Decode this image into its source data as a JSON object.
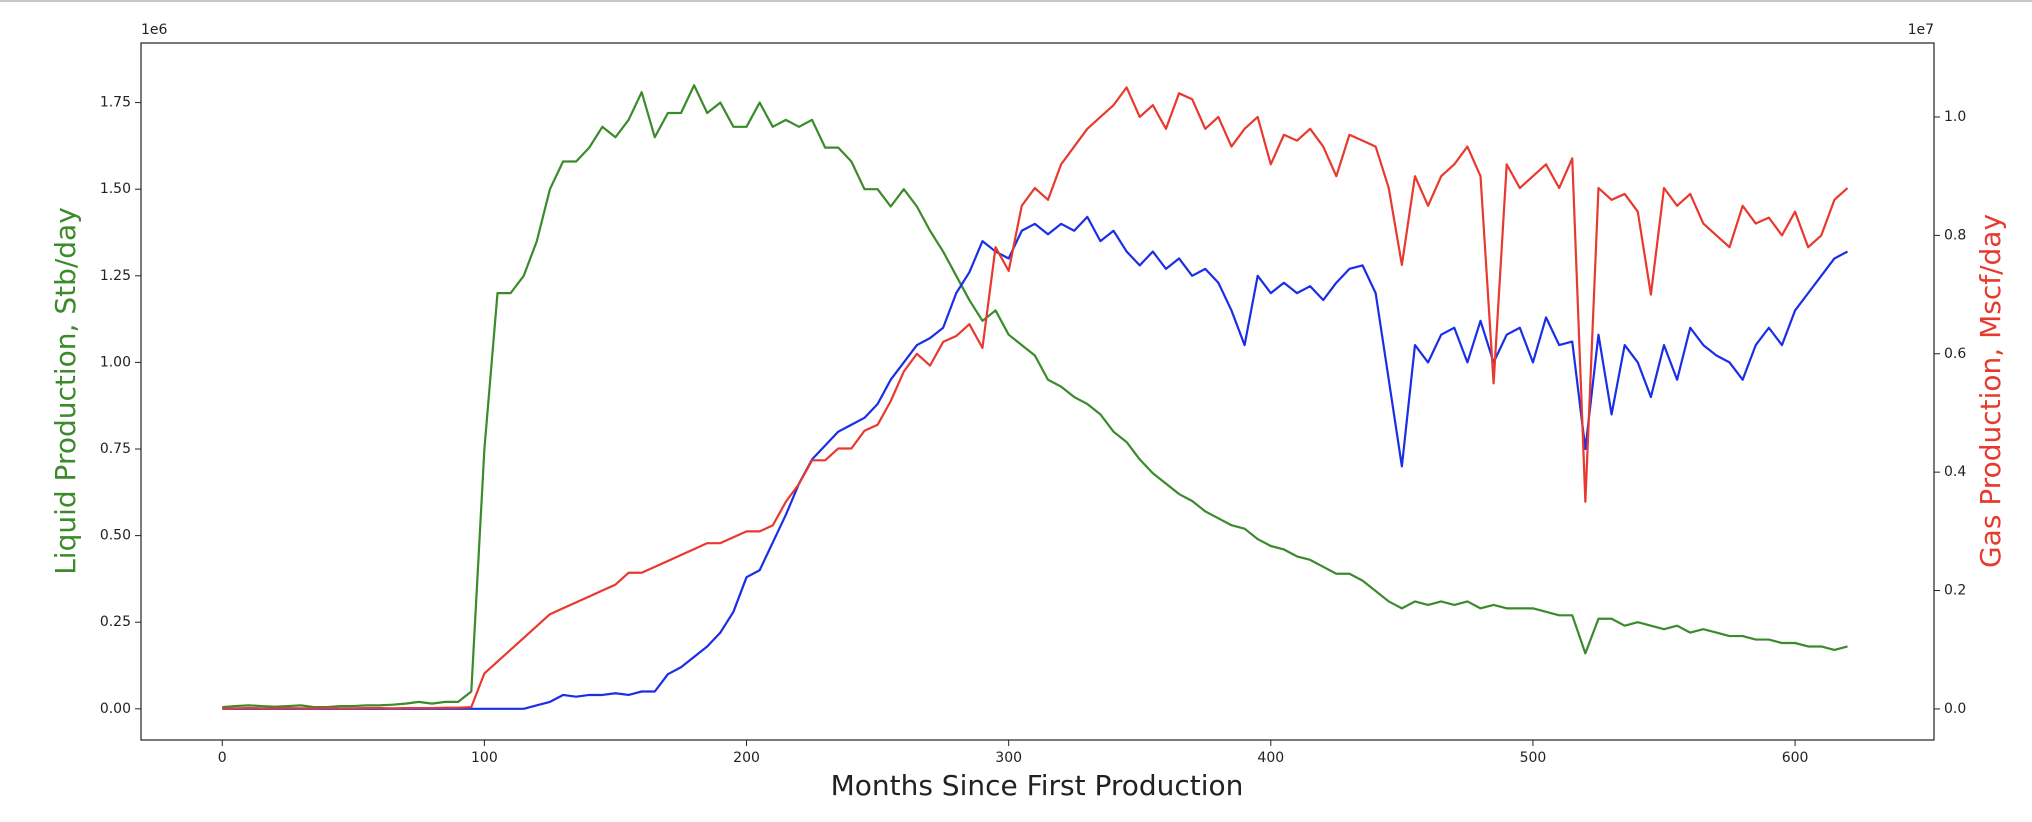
{
  "chart_data": {
    "type": "line",
    "xlabel": "Months Since First Production",
    "ylabel": "Liquid Production, Stb/day",
    "y2label": "Gas Production, Mscf/day",
    "y_offset_text": "1e6",
    "y2_offset_text": "1e7",
    "ylabel_color": "#3b8a2b",
    "y2label_color": "#e8392e",
    "xlim": [
      -31,
      653
    ],
    "ylim": [
      -90000,
      1922000
    ],
    "y2lim": [
      -525000,
      11250000
    ],
    "xticks": [
      0,
      100,
      200,
      300,
      400,
      500,
      600
    ],
    "yticks": [
      {
        "value": 0,
        "label": "0.00"
      },
      {
        "value": 250000,
        "label": "0.25"
      },
      {
        "value": 500000,
        "label": "0.50"
      },
      {
        "value": 750000,
        "label": "0.75"
      },
      {
        "value": 1000000,
        "label": "1.00"
      },
      {
        "value": 1250000,
        "label": "1.25"
      },
      {
        "value": 1500000,
        "label": "1.50"
      },
      {
        "value": 1750000,
        "label": "1.75"
      }
    ],
    "y2ticks": [
      {
        "value": 0,
        "label": "0.0"
      },
      {
        "value": 2000000,
        "label": "0.2"
      },
      {
        "value": 4000000,
        "label": "0.4"
      },
      {
        "value": 6000000,
        "label": "0.6"
      },
      {
        "value": 8000000,
        "label": "0.8"
      },
      {
        "value": 10000000,
        "label": "1.0"
      }
    ],
    "x": [
      0,
      5,
      10,
      15,
      20,
      25,
      30,
      35,
      40,
      45,
      50,
      55,
      60,
      65,
      70,
      75,
      80,
      85,
      90,
      95,
      100,
      105,
      110,
      115,
      120,
      125,
      130,
      135,
      140,
      145,
      150,
      155,
      160,
      165,
      170,
      175,
      180,
      185,
      190,
      195,
      200,
      205,
      210,
      215,
      220,
      225,
      230,
      235,
      240,
      245,
      250,
      255,
      260,
      265,
      270,
      275,
      280,
      285,
      290,
      295,
      300,
      305,
      310,
      315,
      320,
      325,
      330,
      335,
      340,
      345,
      350,
      355,
      360,
      365,
      370,
      375,
      380,
      385,
      390,
      395,
      400,
      405,
      410,
      415,
      420,
      425,
      430,
      435,
      440,
      445,
      450,
      455,
      460,
      465,
      470,
      475,
      480,
      485,
      490,
      495,
      500,
      505,
      510,
      515,
      520,
      525,
      530,
      535,
      540,
      545,
      550,
      555,
      560,
      565,
      570,
      575,
      580,
      585,
      590,
      595,
      600,
      605,
      610,
      615,
      620
    ],
    "series": [
      {
        "color": "#3b8a2b",
        "values": [
          5000,
          8000,
          10000,
          8000,
          6000,
          8000,
          10000,
          5000,
          5000,
          8000,
          8000,
          10000,
          10000,
          12000,
          15000,
          20000,
          15000,
          20000,
          20000,
          50000,
          750000,
          1200000,
          1200000,
          1250000,
          1350000,
          1500000,
          1580000,
          1580000,
          1620000,
          1680000,
          1650000,
          1700000,
          1780000,
          1650000,
          1720000,
          1720000,
          1800000,
          1720000,
          1750000,
          1680000,
          1680000,
          1750000,
          1680000,
          1700000,
          1680000,
          1700000,
          1620000,
          1620000,
          1580000,
          1500000,
          1500000,
          1450000,
          1500000,
          1450000,
          1380000,
          1320000,
          1250000,
          1180000,
          1120000,
          1150000,
          1080000,
          1050000,
          1020000,
          950000,
          930000,
          900000,
          880000,
          850000,
          800000,
          770000,
          720000,
          680000,
          650000,
          620000,
          600000,
          570000,
          550000,
          530000,
          520000,
          490000,
          470000,
          460000,
          440000,
          430000,
          410000,
          390000,
          390000,
          370000,
          340000,
          310000,
          290000,
          310000,
          300000,
          310000,
          300000,
          310000,
          290000,
          300000,
          290000,
          290000,
          290000,
          280000,
          270000,
          270000,
          160000,
          260000,
          260000,
          240000,
          250000,
          240000,
          230000,
          240000,
          220000,
          230000,
          220000,
          210000,
          210000,
          200000,
          200000,
          190000,
          190000,
          180000,
          180000,
          170000,
          180000
        ]
      },
      {
        "color": "#1a2ee8",
        "values": [
          0,
          0,
          0,
          0,
          0,
          0,
          0,
          0,
          0,
          0,
          0,
          0,
          0,
          0,
          0,
          0,
          0,
          0,
          0,
          0,
          0,
          0,
          0,
          0,
          10000,
          20000,
          40000,
          35000,
          40000,
          40000,
          45000,
          40000,
          50000,
          50000,
          100000,
          120000,
          150000,
          180000,
          220000,
          280000,
          380000,
          400000,
          480000,
          560000,
          650000,
          720000,
          760000,
          800000,
          820000,
          840000,
          880000,
          950000,
          1000000,
          1050000,
          1070000,
          1100000,
          1200000,
          1260000,
          1350000,
          1320000,
          1300000,
          1380000,
          1400000,
          1370000,
          1400000,
          1380000,
          1420000,
          1350000,
          1380000,
          1320000,
          1280000,
          1320000,
          1270000,
          1300000,
          1250000,
          1270000,
          1230000,
          1150000,
          1050000,
          1250000,
          1200000,
          1230000,
          1200000,
          1220000,
          1180000,
          1230000,
          1270000,
          1280000,
          1200000,
          950000,
          700000,
          1050000,
          1000000,
          1080000,
          1100000,
          1000000,
          1120000,
          1000000,
          1080000,
          1100000,
          1000000,
          1130000,
          1050000,
          1060000,
          750000,
          1080000,
          850000,
          1050000,
          1000000,
          900000,
          1050000,
          950000,
          1100000,
          1050000,
          1020000,
          1000000,
          950000,
          1050000,
          1100000,
          1050000,
          1150000,
          1200000,
          1250000,
          1300000,
          1320000
        ]
      },
      {
        "color": "#e8392e",
        "axis": "y2",
        "values": [
          5000,
          10000,
          15000,
          10000,
          10000,
          15000,
          10000,
          10000,
          15000,
          10000,
          10000,
          15000,
          15000,
          10000,
          15000,
          15000,
          15000,
          20000,
          20000,
          30000,
          600000,
          800000,
          1000000,
          1200000,
          1400000,
          1600000,
          1700000,
          1800000,
          1900000,
          2000000,
          2100000,
          2300000,
          2300000,
          2400000,
          2500000,
          2600000,
          2700000,
          2800000,
          2800000,
          2900000,
          3000000,
          3000000,
          3100000,
          3500000,
          3800000,
          4200000,
          4200000,
          4400000,
          4400000,
          4700000,
          4800000,
          5200000,
          5700000,
          6000000,
          5800000,
          6200000,
          6300000,
          6500000,
          6100000,
          7800000,
          7400000,
          8500000,
          8800000,
          8600000,
          9200000,
          9500000,
          9800000,
          10000000,
          10200000,
          10500000,
          10000000,
          10200000,
          9800000,
          10400000,
          10300000,
          9800000,
          10000000,
          9500000,
          9800000,
          10000000,
          9200000,
          9700000,
          9600000,
          9800000,
          9500000,
          9000000,
          9700000,
          9600000,
          9500000,
          8800000,
          7500000,
          9000000,
          8500000,
          9000000,
          9200000,
          9500000,
          9000000,
          5500000,
          9200000,
          8800000,
          9000000,
          9200000,
          8800000,
          9300000,
          3500000,
          8800000,
          8600000,
          8700000,
          8400000,
          7000000,
          8800000,
          8500000,
          8700000,
          8200000,
          8000000,
          7800000,
          8500000,
          8200000,
          8300000,
          8000000,
          8400000,
          7800000,
          8000000,
          8600000,
          8800000
        ]
      }
    ]
  }
}
